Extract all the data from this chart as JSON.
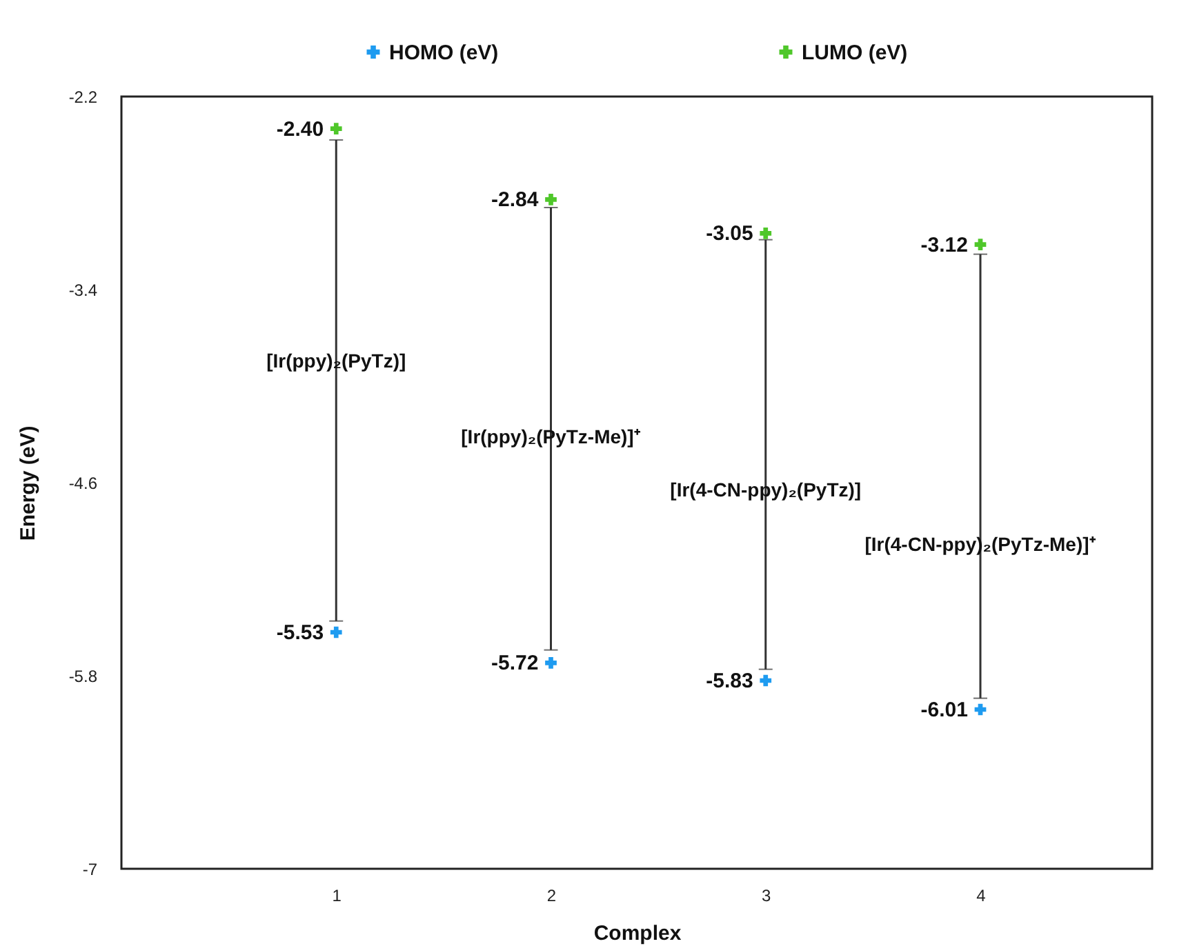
{
  "chart_data": {
    "type": "scatter",
    "xlabel": "Complex",
    "ylabel": "Energy (eV)",
    "x": [
      1,
      2,
      3,
      4
    ],
    "xlim": [
      0,
      4.8
    ],
    "xticks": [
      1,
      2,
      3,
      4
    ],
    "ylim": [
      -7,
      -2.2
    ],
    "yticks": [
      -2.2,
      -3.4,
      -4.6,
      -5.8,
      -7
    ],
    "marker": "cross",
    "legend": "top",
    "series": [
      {
        "name": "HOMO (eV)",
        "color": "#1e9bf0",
        "values": [
          -5.53,
          -5.72,
          -5.83,
          -6.01
        ],
        "value_labels": [
          "-5.53",
          "-5.72",
          "-5.83",
          "-6.01"
        ]
      },
      {
        "name": "LUMO (eV)",
        "color": "#4fc72a",
        "values": [
          -2.4,
          -2.84,
          -3.05,
          -3.12
        ],
        "value_labels": [
          "-2.40",
          "-2.84",
          "-3.05",
          "-3.12"
        ],
        "errors": [
          [
            -5.46,
            -2.47
          ],
          [
            -5.64,
            -2.89
          ],
          [
            -5.76,
            -3.09
          ],
          [
            -5.94,
            -3.18
          ]
        ]
      }
    ],
    "annotations": [
      {
        "text": "[Ir(ppy)₂(PyTz)]",
        "x": 1,
        "y": -3.85
      },
      {
        "text": "[Ir(ppy)₂(PyTz-Me)]⁺",
        "x": 2,
        "y": -4.32
      },
      {
        "text": "[Ir(4-CN-ppy)₂(PyTz)]",
        "x": 3,
        "y": -4.65
      },
      {
        "text": "[Ir(4-CN-ppy)₂(PyTz-Me)]⁺",
        "x": 4,
        "y": -4.99
      }
    ]
  }
}
